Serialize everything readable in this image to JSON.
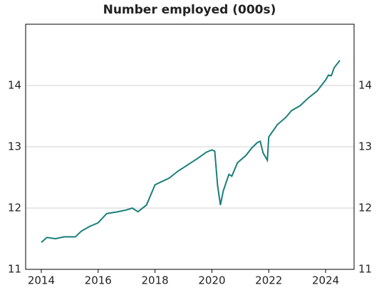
{
  "chart_data": {
    "type": "line",
    "title": "Number employed (000s)",
    "x": [
      2014.0,
      2014.2,
      2014.5,
      2014.8,
      2015.2,
      2015.4,
      2015.7,
      2016.0,
      2016.3,
      2016.7,
      2017.0,
      2017.2,
      2017.4,
      2017.7,
      2018.0,
      2018.5,
      2018.8,
      2019.2,
      2019.5,
      2019.8,
      2020.0,
      2020.1,
      2020.2,
      2020.3,
      2020.4,
      2020.6,
      2020.7,
      2020.9,
      2021.2,
      2021.4,
      2021.6,
      2021.7,
      2021.8,
      2021.95,
      2022.0,
      2022.3,
      2022.6,
      2022.8,
      2023.1,
      2023.4,
      2023.7,
      2024.0,
      2024.1,
      2024.2,
      2024.3,
      2024.5
    ],
    "series": [
      {
        "color": "#1a7f7a",
        "values": [
          11.44,
          11.52,
          11.5,
          11.53,
          11.53,
          11.62,
          11.7,
          11.76,
          11.91,
          11.94,
          11.97,
          12.0,
          11.94,
          12.05,
          12.38,
          12.49,
          12.6,
          12.72,
          12.81,
          12.91,
          12.95,
          12.93,
          12.37,
          12.05,
          12.28,
          12.55,
          12.52,
          12.74,
          12.86,
          12.98,
          13.07,
          13.09,
          12.9,
          12.78,
          13.16,
          13.36,
          13.48,
          13.59,
          13.67,
          13.8,
          13.91,
          14.09,
          14.17,
          14.16,
          14.29,
          14.41
        ]
      }
    ],
    "xlim": [
      2013.45,
      2025.0
    ],
    "xticks": [
      2014,
      2016,
      2018,
      2020,
      2022,
      2024
    ],
    "ylim": [
      11,
      15
    ],
    "yticks": [
      11,
      12,
      13,
      14
    ],
    "grid": true
  }
}
